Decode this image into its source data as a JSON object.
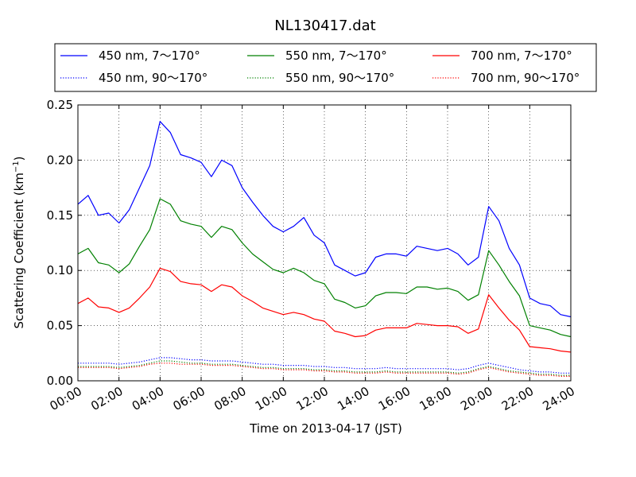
{
  "chart_data": {
    "type": "line",
    "title": "NL130417.dat",
    "xlabel": "Time on 2013-04-17 (JST)",
    "ylabel": "Scattering Coefficient (km",
    "ylabel_sup": "−1",
    "ylabel_close": ")",
    "xlim": [
      0,
      24
    ],
    "ylim": [
      0,
      0.25
    ],
    "grid": true,
    "legend_position": "top",
    "x_unit": "hour (JST)",
    "x_ticks": [
      0,
      2,
      4,
      6,
      8,
      10,
      12,
      14,
      16,
      18,
      20,
      22,
      24
    ],
    "x_tick_labels": [
      "00:00",
      "02:00",
      "04:00",
      "06:00",
      "08:00",
      "10:00",
      "12:00",
      "14:00",
      "16:00",
      "18:00",
      "20:00",
      "22:00",
      "24:00"
    ],
    "y_ticks": [
      0,
      0.05,
      0.1,
      0.15,
      0.2,
      0.25
    ],
    "y_tick_labels": [
      "0.00",
      "0.05",
      "0.10",
      "0.15",
      "0.20",
      "0.25"
    ],
    "x": [
      0,
      0.5,
      1,
      1.5,
      2,
      2.5,
      3,
      3.5,
      4,
      4.5,
      5,
      5.5,
      6,
      6.5,
      7,
      7.5,
      8,
      8.5,
      9,
      9.5,
      10,
      10.5,
      11,
      11.5,
      12,
      12.5,
      13,
      13.5,
      14,
      14.5,
      15,
      15.5,
      16,
      16.5,
      17,
      17.5,
      18,
      18.5,
      19,
      19.5,
      20,
      20.5,
      21,
      21.5,
      22,
      22.5,
      23,
      23.5,
      24
    ],
    "series": [
      {
        "name": "450 nm, 7～170°",
        "color": "#0000ff",
        "dash": "solid",
        "values": [
          0.16,
          0.168,
          0.15,
          0.152,
          0.143,
          0.155,
          0.175,
          0.195,
          0.235,
          0.225,
          0.205,
          0.202,
          0.198,
          0.185,
          0.2,
          0.195,
          0.175,
          0.162,
          0.15,
          0.14,
          0.135,
          0.14,
          0.148,
          0.132,
          0.125,
          0.105,
          0.1,
          0.095,
          0.098,
          0.112,
          0.115,
          0.115,
          0.113,
          0.122,
          0.12,
          0.118,
          0.12,
          0.115,
          0.105,
          0.112,
          0.158,
          0.145,
          0.12,
          0.105,
          0.075,
          0.07,
          0.068,
          0.06,
          0.058
        ]
      },
      {
        "name": "450 nm, 90～170°",
        "color": "#0000ff",
        "dash": "dotted",
        "values": [
          0.016,
          0.016,
          0.016,
          0.016,
          0.015,
          0.016,
          0.017,
          0.019,
          0.021,
          0.021,
          0.02,
          0.019,
          0.019,
          0.018,
          0.018,
          0.018,
          0.017,
          0.016,
          0.015,
          0.015,
          0.014,
          0.014,
          0.014,
          0.013,
          0.013,
          0.012,
          0.012,
          0.011,
          0.011,
          0.011,
          0.012,
          0.011,
          0.011,
          0.011,
          0.011,
          0.011,
          0.011,
          0.01,
          0.011,
          0.014,
          0.016,
          0.014,
          0.012,
          0.01,
          0.009,
          0.008,
          0.008,
          0.007,
          0.007
        ]
      },
      {
        "name": "550 nm, 7～170°",
        "color": "#008000",
        "dash": "solid",
        "values": [
          0.115,
          0.12,
          0.107,
          0.105,
          0.098,
          0.106,
          0.122,
          0.137,
          0.165,
          0.16,
          0.145,
          0.142,
          0.14,
          0.13,
          0.14,
          0.137,
          0.125,
          0.115,
          0.108,
          0.101,
          0.098,
          0.102,
          0.098,
          0.091,
          0.088,
          0.074,
          0.071,
          0.066,
          0.068,
          0.077,
          0.08,
          0.08,
          0.079,
          0.085,
          0.085,
          0.083,
          0.084,
          0.081,
          0.073,
          0.078,
          0.118,
          0.105,
          0.09,
          0.077,
          0.05,
          0.048,
          0.046,
          0.042,
          0.04
        ]
      },
      {
        "name": "550 nm, 90～170°",
        "color": "#008000",
        "dash": "dotted",
        "values": [
          0.013,
          0.013,
          0.013,
          0.013,
          0.012,
          0.013,
          0.014,
          0.016,
          0.018,
          0.018,
          0.017,
          0.016,
          0.016,
          0.015,
          0.015,
          0.015,
          0.014,
          0.013,
          0.012,
          0.012,
          0.011,
          0.011,
          0.011,
          0.01,
          0.01,
          0.009,
          0.009,
          0.008,
          0.008,
          0.008,
          0.009,
          0.008,
          0.008,
          0.008,
          0.008,
          0.008,
          0.008,
          0.007,
          0.008,
          0.011,
          0.013,
          0.011,
          0.009,
          0.008,
          0.007,
          0.006,
          0.006,
          0.005,
          0.005
        ]
      },
      {
        "name": "700 nm, 7～170°",
        "color": "#ff0000",
        "dash": "solid",
        "values": [
          0.07,
          0.075,
          0.067,
          0.066,
          0.062,
          0.066,
          0.075,
          0.085,
          0.102,
          0.099,
          0.09,
          0.088,
          0.087,
          0.081,
          0.087,
          0.085,
          0.077,
          0.072,
          0.066,
          0.063,
          0.06,
          0.062,
          0.06,
          0.056,
          0.054,
          0.045,
          0.043,
          0.04,
          0.041,
          0.046,
          0.048,
          0.048,
          0.048,
          0.052,
          0.051,
          0.05,
          0.05,
          0.049,
          0.043,
          0.047,
          0.078,
          0.066,
          0.055,
          0.046,
          0.031,
          0.03,
          0.029,
          0.027,
          0.026
        ]
      },
      {
        "name": "700 nm, 90～170°",
        "color": "#ff0000",
        "dash": "dotted",
        "values": [
          0.012,
          0.012,
          0.012,
          0.012,
          0.011,
          0.012,
          0.013,
          0.015,
          0.016,
          0.016,
          0.015,
          0.015,
          0.015,
          0.014,
          0.014,
          0.014,
          0.013,
          0.012,
          0.011,
          0.011,
          0.01,
          0.01,
          0.01,
          0.009,
          0.009,
          0.008,
          0.008,
          0.007,
          0.007,
          0.007,
          0.008,
          0.007,
          0.007,
          0.007,
          0.007,
          0.007,
          0.007,
          0.006,
          0.007,
          0.01,
          0.012,
          0.01,
          0.008,
          0.007,
          0.006,
          0.005,
          0.005,
          0.004,
          0.004
        ]
      }
    ]
  }
}
